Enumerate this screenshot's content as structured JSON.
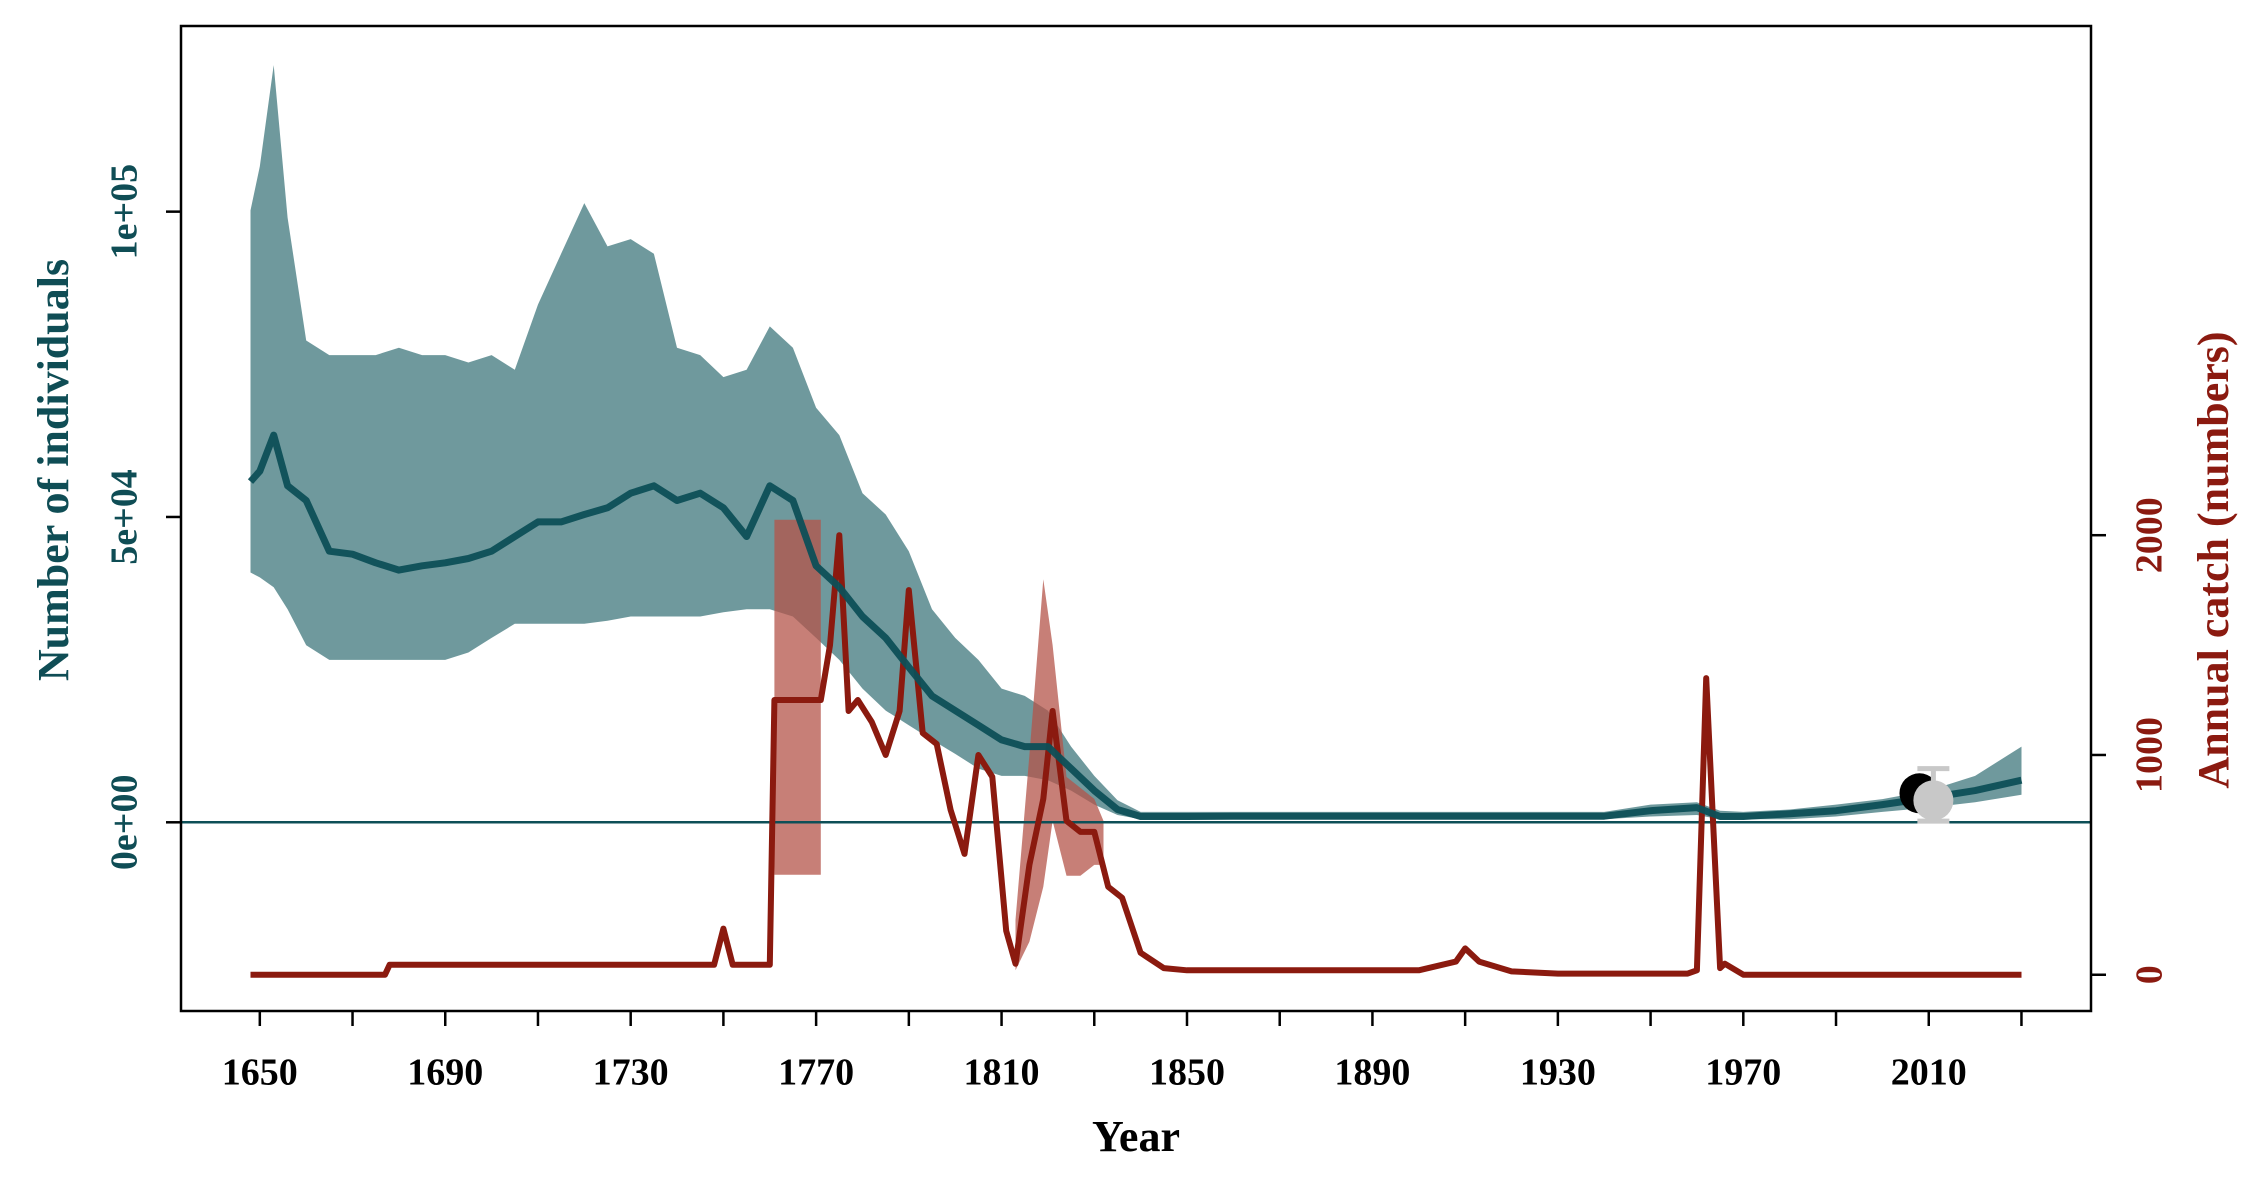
{
  "chart_data": {
    "type": "line",
    "x_label": "Year",
    "y_label": "Number of individuals",
    "y2_label": "Annual catch (numbers)",
    "xlim": [
      1633,
      2045
    ],
    "xticks": [
      1650,
      1690,
      1730,
      1770,
      1810,
      1850,
      1890,
      1930,
      1970,
      2010
    ],
    "xminorticks": [
      1670,
      1710,
      1750,
      1790,
      1830,
      1870,
      1910,
      1950,
      1990,
      2030
    ],
    "ylim": [
      -30900,
      130400
    ],
    "yticks": [
      {
        "value": 0,
        "label": "0e+00"
      },
      {
        "value": 50000,
        "label": "5e+04"
      },
      {
        "value": 100000,
        "label": "1e+05"
      }
    ],
    "y2lim": [
      -165,
      4317
    ],
    "y2ticks": [
      0,
      1000,
      2000
    ],
    "reference_line": 0,
    "y_color": "#0f4d55",
    "y2_color": "#8b1a10",
    "population": {
      "color": "#0d4f57",
      "band_color": "#6f999d",
      "x": [
        1648,
        1650,
        1653,
        1656,
        1660,
        1665,
        1670,
        1675,
        1680,
        1685,
        1690,
        1695,
        1700,
        1705,
        1710,
        1715,
        1720,
        1725,
        1730,
        1735,
        1740,
        1745,
        1750,
        1755,
        1760,
        1765,
        1770,
        1775,
        1780,
        1785,
        1790,
        1795,
        1800,
        1805,
        1810,
        1815,
        1820,
        1825,
        1830,
        1835,
        1840,
        1845,
        1850,
        1860,
        1870,
        1880,
        1890,
        1900,
        1910,
        1920,
        1930,
        1940,
        1950,
        1960,
        1965,
        1970,
        1980,
        1990,
        2000,
        2010,
        2020,
        2030
      ],
      "values": [
        55800,
        57500,
        63400,
        55100,
        52700,
        44400,
        43900,
        42500,
        41300,
        42000,
        42500,
        43200,
        44400,
        46800,
        49200,
        49200,
        50400,
        51500,
        53900,
        55100,
        52700,
        53900,
        51500,
        46800,
        55100,
        52700,
        42000,
        38500,
        33700,
        30200,
        25400,
        20700,
        18300,
        15900,
        13500,
        12400,
        12400,
        8800,
        5200,
        2100,
        950,
        950,
        950,
        1000,
        1000,
        1000,
        1000,
        1000,
        1000,
        1000,
        1000,
        1000,
        1900,
        2400,
        950,
        950,
        1400,
        1900,
        2900,
        4000,
        5200,
        6900
      ],
      "upper": [
        100200,
        107400,
        124000,
        99000,
        78900,
        76500,
        76500,
        76500,
        77700,
        76500,
        76500,
        75300,
        76500,
        74100,
        84800,
        93100,
        101400,
        94300,
        95500,
        93100,
        77700,
        76500,
        72900,
        74100,
        81200,
        77700,
        67900,
        63400,
        53900,
        50400,
        44400,
        34900,
        30200,
        26600,
        21900,
        20700,
        18300,
        12400,
        7600,
        3600,
        1700,
        1700,
        1700,
        1700,
        1700,
        1700,
        1700,
        1700,
        1700,
        1700,
        1700,
        1700,
        2900,
        3300,
        1900,
        1700,
        2100,
        2900,
        3800,
        5200,
        7600,
        12400
      ],
      "lower": [
        40900,
        40100,
        38500,
        34900,
        29000,
        26600,
        26600,
        26600,
        26600,
        26600,
        26600,
        27800,
        30200,
        32500,
        32500,
        32500,
        32500,
        33000,
        33700,
        33700,
        33700,
        33700,
        34400,
        34900,
        34900,
        33700,
        30200,
        26600,
        21900,
        18300,
        15900,
        13500,
        11200,
        8800,
        7600,
        7600,
        6900,
        5200,
        2900,
        1200,
        500,
        500,
        500,
        500,
        500,
        500,
        500,
        500,
        500,
        500,
        500,
        500,
        950,
        1200,
        500,
        500,
        500,
        950,
        1700,
        2400,
        3300,
        4500
      ]
    },
    "catch": {
      "axis": "y2",
      "color": "#8b1a0f",
      "band_color": "#b4544a",
      "x": [
        1648,
        1677,
        1678,
        1748,
        1750,
        1752,
        1754,
        1760,
        1761,
        1762,
        1763,
        1771,
        1773,
        1775,
        1777,
        1779,
        1782,
        1785,
        1788,
        1790,
        1793,
        1796,
        1799,
        1802,
        1805,
        1808,
        1811,
        1813,
        1816,
        1819,
        1821,
        1824,
        1827,
        1830,
        1833,
        1836,
        1840,
        1845,
        1850,
        1860,
        1870,
        1880,
        1890,
        1900,
        1908,
        1910,
        1913,
        1920,
        1930,
        1940,
        1950,
        1958,
        1960,
        1962,
        1963,
        1965,
        1966,
        1970,
        2000,
        2030
      ],
      "values": [
        0,
        0,
        45,
        45,
        210,
        45,
        45,
        45,
        1250,
        1250,
        1250,
        1250,
        1500,
        2000,
        1200,
        1250,
        1150,
        1000,
        1200,
        1750,
        1100,
        1050,
        750,
        550,
        1000,
        900,
        200,
        50,
        500,
        800,
        1200,
        700,
        650,
        650,
        400,
        350,
        100,
        30,
        20,
        20,
        20,
        20,
        20,
        20,
        60,
        120,
        60,
        15,
        5,
        5,
        5,
        5,
        20,
        1350,
        900,
        30,
        50,
        0,
        0,
        0
      ],
      "band_x": [
        1761,
        1771,
        1772,
        1813,
        1816,
        1819,
        1821,
        1824,
        1827,
        1830,
        1832
      ],
      "band_upper": [
        2070,
        2070,
        null,
        250,
        1000,
        1800,
        1500,
        900,
        850,
        800,
        700
      ],
      "band_lower": [
        455,
        455,
        null,
        20,
        150,
        400,
        700,
        450,
        450,
        500,
        500
      ]
    },
    "observations": [
      {
        "x": 2008,
        "value": 4750,
        "color": "#000000"
      },
      {
        "x": 2011,
        "value": 3600,
        "lower": 200,
        "upper": 8800,
        "color": "#c8c8c8"
      }
    ]
  }
}
